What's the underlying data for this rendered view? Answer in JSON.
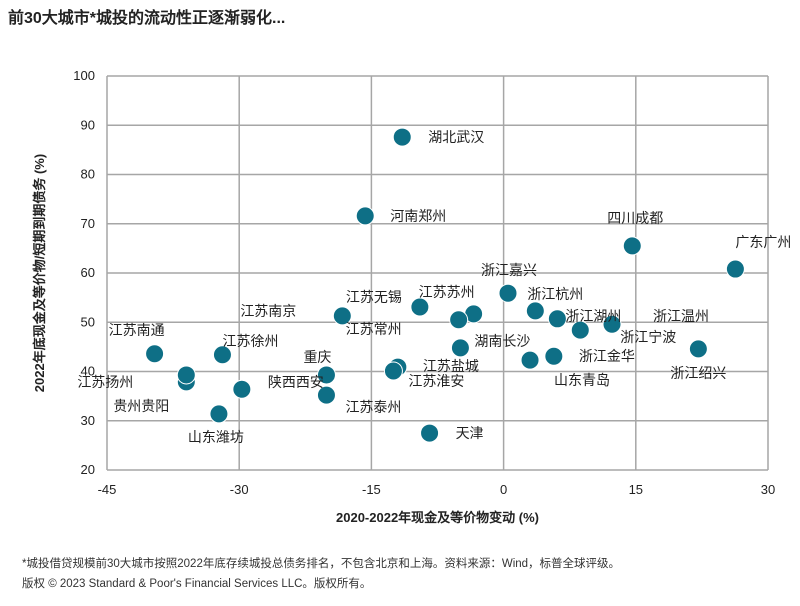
{
  "title": "前30大城市*城投的流动性正逐渐弱化...",
  "footnote": "*城投借贷规模前30大城市按照2022年底存续城投总债务排名，不包含北京和上海。资料来源：Wind，标普全球评级。",
  "copyright": "版权 © 2023 Standard & Poor's Financial Services LLC。版权所有。",
  "chart_data": {
    "type": "scatter",
    "xlabel": "2020-2022年现金及等价物变动 (%)",
    "ylabel": "2022年底现金及等价物/短期到期债务 (%)",
    "xlim": [
      -45,
      30
    ],
    "ylim": [
      20,
      100
    ],
    "xticks": [
      -45,
      -30,
      -15,
      0,
      15,
      30
    ],
    "yticks": [
      20,
      30,
      40,
      50,
      60,
      70,
      80,
      90,
      100
    ],
    "grid": true,
    "color": "#0e6f86",
    "points": [
      {
        "label": "湖北武汉",
        "x": -11.5,
        "y": 87.6
      },
      {
        "label": "河南郑州",
        "x": -15.7,
        "y": 71.6
      },
      {
        "label": "四川成都",
        "x": 14.6,
        "y": 65.5
      },
      {
        "label": "广东广州",
        "x": 26.3,
        "y": 60.8
      },
      {
        "label": "浙江嘉兴",
        "x": 0.5,
        "y": 55.9
      },
      {
        "label": "浙江杭州",
        "x": 3.6,
        "y": 52.3
      },
      {
        "label": "浙江湖州",
        "x": 6.1,
        "y": 50.7
      },
      {
        "label": "浙江温州",
        "x": 12.3,
        "y": 49.6
      },
      {
        "label": "浙江宁波",
        "x": 8.7,
        "y": 48.4
      },
      {
        "label": "浙江绍兴",
        "x": 22.1,
        "y": 44.6
      },
      {
        "label": "浙江金华",
        "x": 5.7,
        "y": 43.1
      },
      {
        "label": "山东青岛",
        "x": 3.0,
        "y": 42.3
      },
      {
        "label": "湖南长沙",
        "x": -4.9,
        "y": 44.8
      },
      {
        "label": "江苏苏州",
        "x": -3.4,
        "y": 51.7
      },
      {
        "label": "江苏无锡",
        "x": -9.5,
        "y": 53.1
      },
      {
        "label": "江苏南京",
        "x": -18.3,
        "y": 51.3
      },
      {
        "label": "江苏常州",
        "x": -5.1,
        "y": 50.5
      },
      {
        "label": "江苏盐城",
        "x": -12.0,
        "y": 40.9
      },
      {
        "label": "江苏淮安",
        "x": -12.5,
        "y": 40.1
      },
      {
        "label": "江苏泰州",
        "x": -20.1,
        "y": 35.2
      },
      {
        "label": "重庆",
        "x": -20.1,
        "y": 39.3
      },
      {
        "label": "陕西西安",
        "x": -29.7,
        "y": 36.4
      },
      {
        "label": "江苏南通",
        "x": -39.6,
        "y": 43.6
      },
      {
        "label": "江苏徐州",
        "x": -31.9,
        "y": 43.4
      },
      {
        "label": "江苏扬州",
        "x": -36.0,
        "y": 37.9
      },
      {
        "label": "贵州贵阳",
        "x": -36.0,
        "y": 39.3
      },
      {
        "label": "山东潍坊",
        "x": -32.3,
        "y": 31.4
      },
      {
        "label": "天津",
        "x": -8.4,
        "y": 27.5
      }
    ]
  }
}
